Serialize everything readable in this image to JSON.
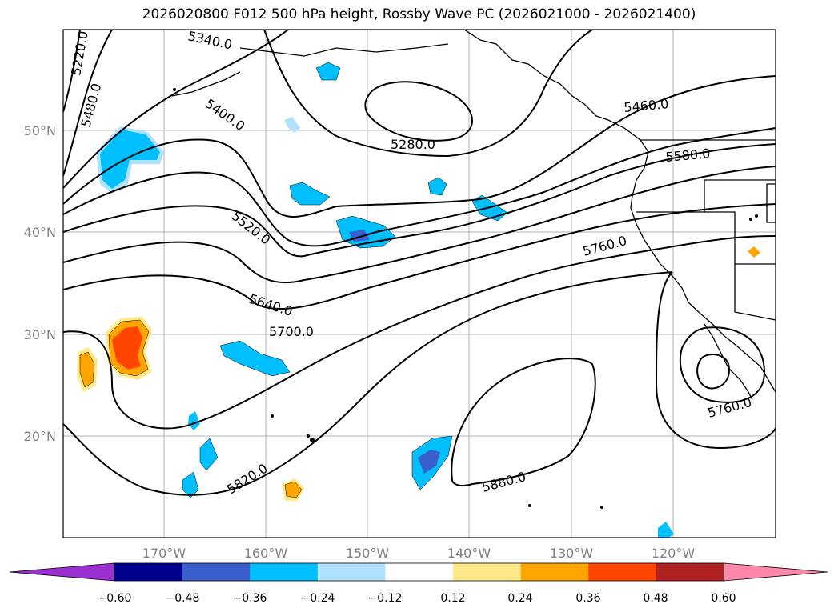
{
  "title": "2026020800 F012 500 hPa height, Rossby Wave PC (2026021000 - 2026021400)",
  "lat_ticks": [
    "50°N",
    "40°N",
    "30°N",
    "20°N"
  ],
  "lon_ticks": [
    "170°W",
    "160°W",
    "150°W",
    "140°W",
    "130°W",
    "120°W"
  ],
  "contour_labels": [
    "5220.0",
    "5340.0",
    "5480.0",
    "5400.0",
    "5280.0",
    "5460.0",
    "5580.0",
    "5520.0",
    "5760.0",
    "5640.0",
    "5700.0",
    "5820.0",
    "5880.0",
    "5760.0"
  ],
  "colorbar": {
    "ticks": [
      "−0.60",
      "−0.48",
      "−0.36",
      "−0.24",
      "−0.12",
      "0.12",
      "0.24",
      "0.36",
      "0.48",
      "0.60"
    ],
    "colors": [
      "#9b30d0",
      "#000090",
      "#3a5fcd",
      "#00bfff",
      "#b0e2ff",
      "#ffffff",
      "#ffe98a",
      "#ffa500",
      "#ff4500",
      "#b22222",
      "#ff88aa"
    ]
  }
}
